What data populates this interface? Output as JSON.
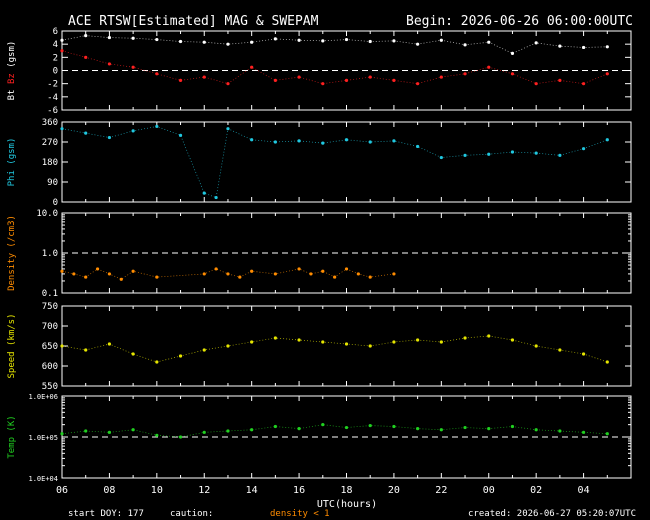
{
  "header": {
    "title": "ACE RTSW[Estimated] MAG & SWEPAM",
    "begin": "Begin: 2026-06-26 06:00:00UTC"
  },
  "footer": {
    "start_doy": "start DOY: 177",
    "caution_label": "caution:",
    "caution_note": "density < 1",
    "created": "created: 2026-06-27 05:20:07UTC"
  },
  "colors": {
    "bg": "#000000",
    "frame": "#ffffff",
    "bt": "#ffffff",
    "bz": "#ff2020",
    "phi": "#20c8e0",
    "density": "#ff8c00",
    "speed": "#e6e600",
    "temp": "#20d020",
    "caution": "#ff8c00"
  },
  "chart_data": [
    {
      "type": "scatter",
      "id": "mag",
      "ylabel_parts": [
        "Bt",
        "Bz",
        "(gsm)"
      ],
      "ylim": [
        -6,
        6
      ],
      "ytick_labels": [
        "-6",
        "-4",
        "-2",
        "0",
        "2",
        "4",
        "6"
      ],
      "ytick_values": [
        -6,
        -4,
        -2,
        0,
        2,
        4,
        6
      ],
      "reference_line": 0,
      "series": [
        {
          "name": "Bt",
          "color_key": "bt",
          "x": [
            0,
            1,
            2,
            3,
            4,
            5,
            6,
            7,
            8,
            9,
            10,
            11,
            12,
            13,
            14,
            15,
            16,
            17,
            18,
            19,
            20,
            21,
            22,
            23
          ],
          "y": [
            4.6,
            5.3,
            5.0,
            4.9,
            4.7,
            4.4,
            4.3,
            4.0,
            4.3,
            4.8,
            4.6,
            4.5,
            4.7,
            4.4,
            4.5,
            4.0,
            4.6,
            3.9,
            4.3,
            2.6,
            4.2,
            3.7,
            3.5,
            3.6
          ]
        },
        {
          "name": "Bz",
          "color_key": "bz",
          "x": [
            0,
            1,
            2,
            3,
            4,
            5,
            6,
            7,
            8,
            9,
            10,
            11,
            12,
            13,
            14,
            15,
            16,
            17,
            18,
            19,
            20,
            21,
            22,
            23
          ],
          "y": [
            3.0,
            2.0,
            1.0,
            0.5,
            -0.5,
            -1.5,
            -1.0,
            -2.0,
            0.5,
            -1.5,
            -1.0,
            -2.0,
            -1.5,
            -1.0,
            -1.5,
            -2.0,
            -1.0,
            -0.5,
            0.5,
            -0.5,
            -2.0,
            -1.5,
            -2.0,
            -0.5
          ]
        }
      ]
    },
    {
      "type": "scatter",
      "id": "phi",
      "ylabel": "Phi (gsm)",
      "ylim": [
        0,
        360
      ],
      "ytick_labels": [
        "0",
        "90",
        "180",
        "270",
        "360"
      ],
      "ytick_values": [
        0,
        90,
        180,
        270,
        360
      ],
      "series": [
        {
          "name": "Phi",
          "color_key": "phi",
          "x": [
            0,
            1,
            2,
            3,
            4,
            5,
            6,
            6.5,
            7,
            8,
            9,
            10,
            11,
            12,
            13,
            14,
            15,
            16,
            17,
            18,
            19,
            20,
            21,
            22,
            23
          ],
          "y": [
            330,
            310,
            290,
            320,
            340,
            300,
            40,
            20,
            330,
            280,
            270,
            275,
            265,
            280,
            270,
            275,
            250,
            200,
            210,
            215,
            225,
            220,
            210,
            240,
            280
          ]
        }
      ]
    },
    {
      "type": "scatter",
      "id": "density",
      "ylabel": "Density (/cm3)",
      "yscale": "log",
      "ylim": [
        0.1,
        10.0
      ],
      "ytick_labels": [
        "0.1",
        "1.0",
        "10.0"
      ],
      "ytick_values": [
        0.1,
        1.0,
        10.0
      ],
      "reference_line": 1.0,
      "series": [
        {
          "name": "Density",
          "color_key": "density",
          "x": [
            0,
            0.5,
            1,
            1.5,
            2,
            2.5,
            3,
            4,
            6,
            6.5,
            7,
            7.5,
            8,
            9,
            10,
            10.5,
            11,
            11.5,
            12,
            12.5,
            13,
            14
          ],
          "y": [
            0.35,
            0.3,
            0.25,
            0.4,
            0.3,
            0.22,
            0.35,
            0.25,
            0.3,
            0.4,
            0.3,
            0.25,
            0.35,
            0.3,
            0.4,
            0.3,
            0.35,
            0.25,
            0.4,
            0.3,
            0.25,
            0.3
          ]
        }
      ]
    },
    {
      "type": "scatter",
      "id": "speed",
      "ylabel": "Speed (km/s)",
      "ylim": [
        550,
        750
      ],
      "ytick_labels": [
        "550",
        "600",
        "650",
        "700",
        "750"
      ],
      "ytick_values": [
        550,
        600,
        650,
        700,
        750
      ],
      "series": [
        {
          "name": "Speed",
          "color_key": "speed",
          "x": [
            0,
            1,
            2,
            3,
            4,
            5,
            6,
            7,
            8,
            9,
            10,
            11,
            12,
            13,
            14,
            15,
            16,
            17,
            18,
            19,
            20,
            21,
            22,
            23
          ],
          "y": [
            650,
            640,
            655,
            630,
            610,
            625,
            640,
            650,
            660,
            670,
            665,
            660,
            655,
            650,
            660,
            665,
            660,
            670,
            675,
            665,
            650,
            640,
            630,
            610
          ]
        }
      ]
    },
    {
      "type": "scatter",
      "id": "temp",
      "ylabel": "Temp (K)",
      "yscale": "log",
      "ylim": [
        10000,
        1000000
      ],
      "ytick_labels": [
        "1.0E+04",
        "1.0E+05",
        "1.0E+06"
      ],
      "ytick_values": [
        10000,
        100000,
        1000000
      ],
      "reference_line": 100000,
      "xlabel": "UTC(hours)",
      "xtick_labels": [
        "06",
        "08",
        "10",
        "12",
        "14",
        "16",
        "18",
        "20",
        "22",
        "00",
        "02",
        "04"
      ],
      "xtick_values": [
        0,
        2,
        4,
        6,
        8,
        10,
        12,
        14,
        16,
        18,
        20,
        22
      ],
      "series": [
        {
          "name": "Temp",
          "color_key": "temp",
          "x": [
            0,
            1,
            2,
            3,
            4,
            5,
            6,
            7,
            8,
            9,
            10,
            11,
            12,
            13,
            14,
            15,
            16,
            17,
            18,
            19,
            20,
            21,
            22,
            23
          ],
          "y": [
            120000,
            140000,
            130000,
            150000,
            110000,
            100000,
            130000,
            140000,
            150000,
            180000,
            160000,
            200000,
            170000,
            190000,
            180000,
            160000,
            150000,
            170000,
            160000,
            180000,
            150000,
            140000,
            130000,
            120000
          ]
        }
      ]
    }
  ]
}
